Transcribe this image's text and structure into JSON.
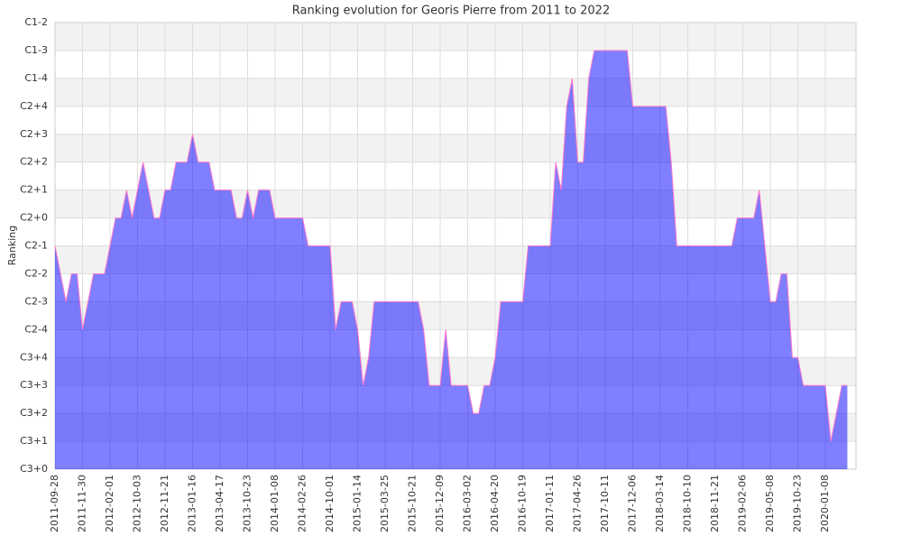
{
  "chart_data": {
    "type": "area",
    "title": "Ranking evolution for Georis Pierre from 2011 to 2022",
    "y_label": "Ranking",
    "fill_color": "rgba(0,0,255,0.5)",
    "line_color": "#ff77cc",
    "grid": true,
    "ylim": [
      0,
      16
    ],
    "yticks": [
      {
        "value": 0,
        "label": "C3+0"
      },
      {
        "value": 1,
        "label": "C3+1"
      },
      {
        "value": 2,
        "label": "C3+2"
      },
      {
        "value": 3,
        "label": "C3+3"
      },
      {
        "value": 4,
        "label": "C3+4"
      },
      {
        "value": 5,
        "label": "C2-4"
      },
      {
        "value": 6,
        "label": "C2-3"
      },
      {
        "value": 7,
        "label": "C2-2"
      },
      {
        "value": 8,
        "label": "C2-1"
      },
      {
        "value": 9,
        "label": "C2+0"
      },
      {
        "value": 10,
        "label": "C2+1"
      },
      {
        "value": 11,
        "label": "C2+2"
      },
      {
        "value": 12,
        "label": "C2+3"
      },
      {
        "value": 13,
        "label": "C2+4"
      },
      {
        "value": 14,
        "label": "C1-4"
      },
      {
        "value": 15,
        "label": "C1-3"
      },
      {
        "value": 16,
        "label": "C1-2"
      }
    ],
    "categories": [
      "2011-09-28",
      null,
      null,
      null,
      null,
      "2011-11-30",
      null,
      null,
      null,
      null,
      "2012-02-01",
      null,
      null,
      null,
      null,
      "2012-10-03",
      null,
      null,
      null,
      null,
      "2012-11-21",
      null,
      null,
      null,
      null,
      "2013-01-16",
      null,
      null,
      null,
      null,
      "2013-04-17",
      null,
      null,
      null,
      null,
      "2013-10-23",
      null,
      null,
      null,
      null,
      "2014-01-08",
      null,
      null,
      null,
      null,
      "2014-02-26",
      null,
      null,
      null,
      null,
      "2014-10-01",
      null,
      null,
      null,
      null,
      "2015-01-14",
      null,
      null,
      null,
      null,
      "2015-03-25",
      null,
      null,
      null,
      null,
      "2015-10-21",
      null,
      null,
      null,
      null,
      "2015-12-09",
      null,
      null,
      null,
      null,
      "2016-03-02",
      null,
      null,
      null,
      null,
      "2016-04-20",
      null,
      null,
      null,
      null,
      "2016-10-19",
      null,
      null,
      null,
      null,
      "2017-01-11",
      null,
      null,
      null,
      null,
      "2017-04-26",
      null,
      null,
      null,
      null,
      "2017-10-11",
      null,
      null,
      null,
      null,
      "2017-12-06",
      null,
      null,
      null,
      null,
      "2018-03-14",
      null,
      null,
      null,
      null,
      "2018-10-10",
      null,
      null,
      null,
      null,
      "2018-11-21",
      null,
      null,
      null,
      null,
      "2019-02-06",
      null,
      null,
      null,
      null,
      "2019-05-08",
      null,
      null,
      null,
      null,
      "2019-10-23",
      null,
      null,
      null,
      null,
      "2020-01-08",
      null,
      null,
      null,
      null
    ],
    "values": [
      8,
      7,
      6,
      7,
      7,
      5,
      6,
      7,
      7,
      7,
      8,
      9,
      9,
      10,
      9,
      10,
      11,
      10,
      9,
      9,
      10,
      10,
      11,
      11,
      11,
      12,
      11,
      11,
      11,
      10,
      10,
      10,
      10,
      9,
      9,
      10,
      9,
      10,
      10,
      10,
      9,
      9,
      9,
      9,
      9,
      9,
      8,
      8,
      8,
      8,
      8,
      5,
      6,
      6,
      6,
      5,
      3,
      4,
      6,
      6,
      6,
      6,
      6,
      6,
      6,
      6,
      6,
      5,
      3,
      3,
      3,
      5,
      3,
      3,
      3,
      3,
      2,
      2,
      3,
      3,
      4,
      6,
      6,
      6,
      6,
      6,
      8,
      8,
      8,
      8,
      8,
      11,
      10,
      13,
      14,
      11,
      11,
      14,
      15,
      15,
      15,
      15,
      15,
      15,
      15,
      13,
      13,
      13,
      13,
      13,
      13,
      13,
      11,
      8,
      8,
      8,
      8,
      8,
      8,
      8,
      8,
      8,
      8,
      8,
      9,
      9,
      9,
      9,
      10,
      8,
      6,
      6,
      7,
      7,
      4,
      4,
      3,
      3,
      3,
      3,
      3,
      1,
      2,
      3,
      3
    ]
  }
}
